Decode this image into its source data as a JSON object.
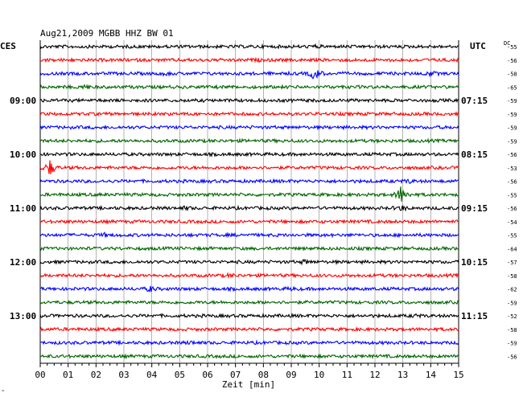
{
  "header": {
    "title": "Aug21,2009   MGBB HHZ BW 01",
    "left_tz": "CES",
    "right_tz": "UTC",
    "dc_label": "DC"
  },
  "footer": {
    "xlabel": "Zeit [min]",
    "corner_mark": "^"
  },
  "colors": {
    "black": "#000000",
    "red": "#ff0000",
    "blue": "#0000ff",
    "green": "#006400",
    "grid": "#808080"
  },
  "chart_data": {
    "type": "line",
    "title": "Aug21,2009   MGBB HHZ BW 01",
    "xlabel": "Zeit [min]",
    "x_ticks": [
      "00",
      "01",
      "02",
      "03",
      "04",
      "05",
      "06",
      "07",
      "08",
      "09",
      "10",
      "11",
      "12",
      "13",
      "14",
      "15"
    ],
    "xlim": [
      0,
      15
    ],
    "traces_count": 24,
    "trace_colors": [
      "black",
      "red",
      "blue",
      "green"
    ],
    "left_time_labels": [
      {
        "row": 4,
        "text": "09:00"
      },
      {
        "row": 8,
        "text": "10:00"
      },
      {
        "row": 12,
        "text": "11:00"
      },
      {
        "row": 16,
        "text": "12:00"
      },
      {
        "row": 20,
        "text": "13:00"
      }
    ],
    "right_time_labels": [
      {
        "row": 4,
        "text": "07:15"
      },
      {
        "row": 8,
        "text": "08:15"
      },
      {
        "row": 12,
        "text": "09:15"
      },
      {
        "row": 16,
        "text": "10:15"
      },
      {
        "row": 20,
        "text": "11:15"
      }
    ],
    "dc_values": [
      -55,
      -56,
      -58,
      -65,
      -59,
      -59,
      -59,
      -59,
      -56,
      -53,
      -56,
      -55,
      -56,
      -54,
      -55,
      -64,
      -57,
      -58,
      -62,
      -59,
      -52,
      -58,
      -59,
      -56
    ],
    "events": [
      {
        "row": 0,
        "minute": 9.85,
        "amp": 1.2
      },
      {
        "row": 1,
        "minute": 7.8,
        "amp": 0.5
      },
      {
        "row": 2,
        "minute": 9.85,
        "amp": 9
      },
      {
        "row": 2,
        "minute": 4.5,
        "amp": 1.5
      },
      {
        "row": 2,
        "minute": 14.0,
        "amp": 2.5
      },
      {
        "row": 3,
        "minute": 1.6,
        "amp": 2
      },
      {
        "row": 9,
        "minute": 0.35,
        "amp": 10
      },
      {
        "row": 10,
        "minute": 13.2,
        "amp": 2
      },
      {
        "row": 11,
        "minute": 12.95,
        "amp": 12
      },
      {
        "row": 12,
        "minute": 5.2,
        "amp": 1.5
      },
      {
        "row": 12,
        "minute": 12.95,
        "amp": 3
      },
      {
        "row": 14,
        "minute": 2.3,
        "amp": 1.5
      },
      {
        "row": 16,
        "minute": 9.5,
        "amp": 2
      },
      {
        "row": 17,
        "minute": 6.8,
        "amp": 1.5
      },
      {
        "row": 18,
        "minute": 3.95,
        "amp": 3
      },
      {
        "row": 18,
        "minute": 9.0,
        "amp": 1.2
      },
      {
        "row": 20,
        "minute": 13.5,
        "amp": 1.2
      },
      {
        "row": 22,
        "minute": 5.4,
        "amp": 1.5
      }
    ]
  }
}
